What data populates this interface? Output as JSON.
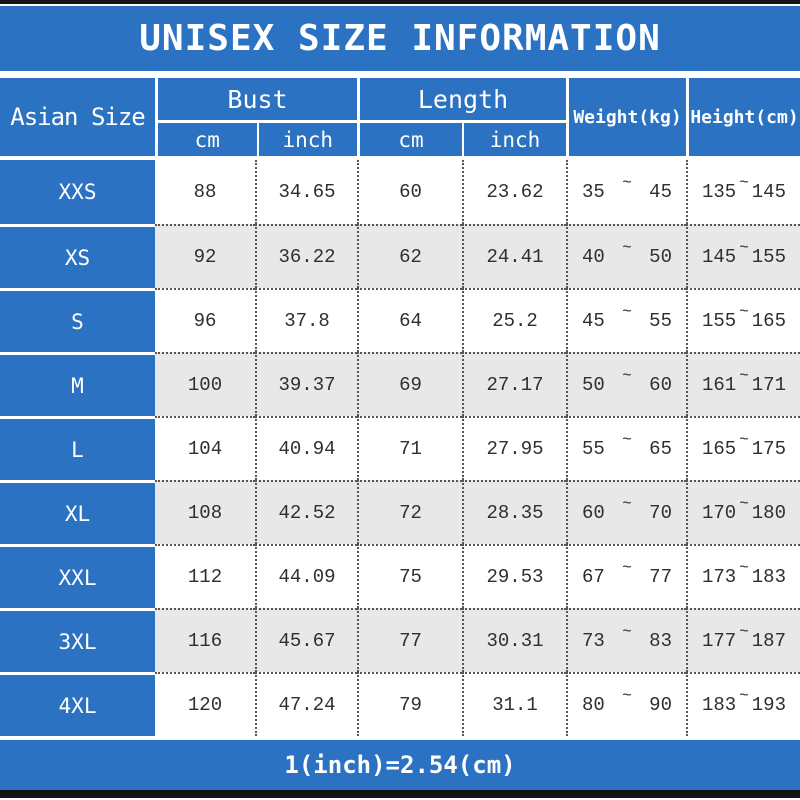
{
  "title": "UNISEX SIZE INFORMATION",
  "footer_note": "1(inch)=2.54(cm)",
  "tilde": "~",
  "colors": {
    "blue": "#2c72c3",
    "alt_row_gray": "#e9e8e8",
    "frame_black": "#141414",
    "data_text": "#2f2f2f"
  },
  "header": {
    "asian_size": "Asian Size",
    "bust": {
      "label": "Bust",
      "cm": "cm",
      "inch": "inch"
    },
    "length": {
      "label": "Length",
      "cm": "cm",
      "inch": "inch"
    },
    "weight": "Weight(kg)",
    "height": "Height(cm)"
  },
  "rows": [
    {
      "size": "XXS",
      "bust_cm": "88",
      "bust_inch": "34.65",
      "length_cm": "60",
      "length_inch": "23.62",
      "weight_min": "35",
      "weight_max": "45",
      "height_min": "135",
      "height_max": "145"
    },
    {
      "size": "XS",
      "bust_cm": "92",
      "bust_inch": "36.22",
      "length_cm": "62",
      "length_inch": "24.41",
      "weight_min": "40",
      "weight_max": "50",
      "height_min": "145",
      "height_max": "155"
    },
    {
      "size": "S",
      "bust_cm": "96",
      "bust_inch": "37.8",
      "length_cm": "64",
      "length_inch": "25.2",
      "weight_min": "45",
      "weight_max": "55",
      "height_min": "155",
      "height_max": "165"
    },
    {
      "size": "M",
      "bust_cm": "100",
      "bust_inch": "39.37",
      "length_cm": "69",
      "length_inch": "27.17",
      "weight_min": "50",
      "weight_max": "60",
      "height_min": "161",
      "height_max": "171"
    },
    {
      "size": "L",
      "bust_cm": "104",
      "bust_inch": "40.94",
      "length_cm": "71",
      "length_inch": "27.95",
      "weight_min": "55",
      "weight_max": "65",
      "height_min": "165",
      "height_max": "175"
    },
    {
      "size": "XL",
      "bust_cm": "108",
      "bust_inch": "42.52",
      "length_cm": "72",
      "length_inch": "28.35",
      "weight_min": "60",
      "weight_max": "70",
      "height_min": "170",
      "height_max": "180"
    },
    {
      "size": "XXL",
      "bust_cm": "112",
      "bust_inch": "44.09",
      "length_cm": "75",
      "length_inch": "29.53",
      "weight_min": "67",
      "weight_max": "77",
      "height_min": "173",
      "height_max": "183"
    },
    {
      "size": "3XL",
      "bust_cm": "116",
      "bust_inch": "45.67",
      "length_cm": "77",
      "length_inch": "30.31",
      "weight_min": "73",
      "weight_max": "83",
      "height_min": "177",
      "height_max": "187"
    },
    {
      "size": "4XL",
      "bust_cm": "120",
      "bust_inch": "47.24",
      "length_cm": "79",
      "length_inch": "31.1",
      "weight_min": "80",
      "weight_max": "90",
      "height_min": "183",
      "height_max": "193"
    }
  ],
  "chart_data": {
    "type": "table",
    "title": "UNISEX SIZE INFORMATION",
    "columns": [
      "Asian Size",
      "Bust cm",
      "Bust inch",
      "Length cm",
      "Length inch",
      "Weight(kg)",
      "Height(cm)"
    ],
    "rows": [
      [
        "XXS",
        88,
        34.65,
        60,
        23.62,
        "35~45",
        "135~145"
      ],
      [
        "XS",
        92,
        36.22,
        62,
        24.41,
        "40~50",
        "145~155"
      ],
      [
        "S",
        96,
        37.8,
        64,
        25.2,
        "45~55",
        "155~165"
      ],
      [
        "M",
        100,
        39.37,
        69,
        27.17,
        "50~60",
        "161~171"
      ],
      [
        "L",
        104,
        40.94,
        71,
        27.95,
        "55~65",
        "165~175"
      ],
      [
        "XL",
        108,
        42.52,
        72,
        28.35,
        "60~70",
        "170~180"
      ],
      [
        "XXL",
        112,
        44.09,
        75,
        29.53,
        "67~77",
        "173~183"
      ],
      [
        "3XL",
        116,
        45.67,
        77,
        30.31,
        "73~83",
        "177~187"
      ],
      [
        "4XL",
        120,
        47.24,
        79,
        31.1,
        "80~90",
        "183~193"
      ]
    ],
    "note": "1(inch)=2.54(cm)"
  }
}
